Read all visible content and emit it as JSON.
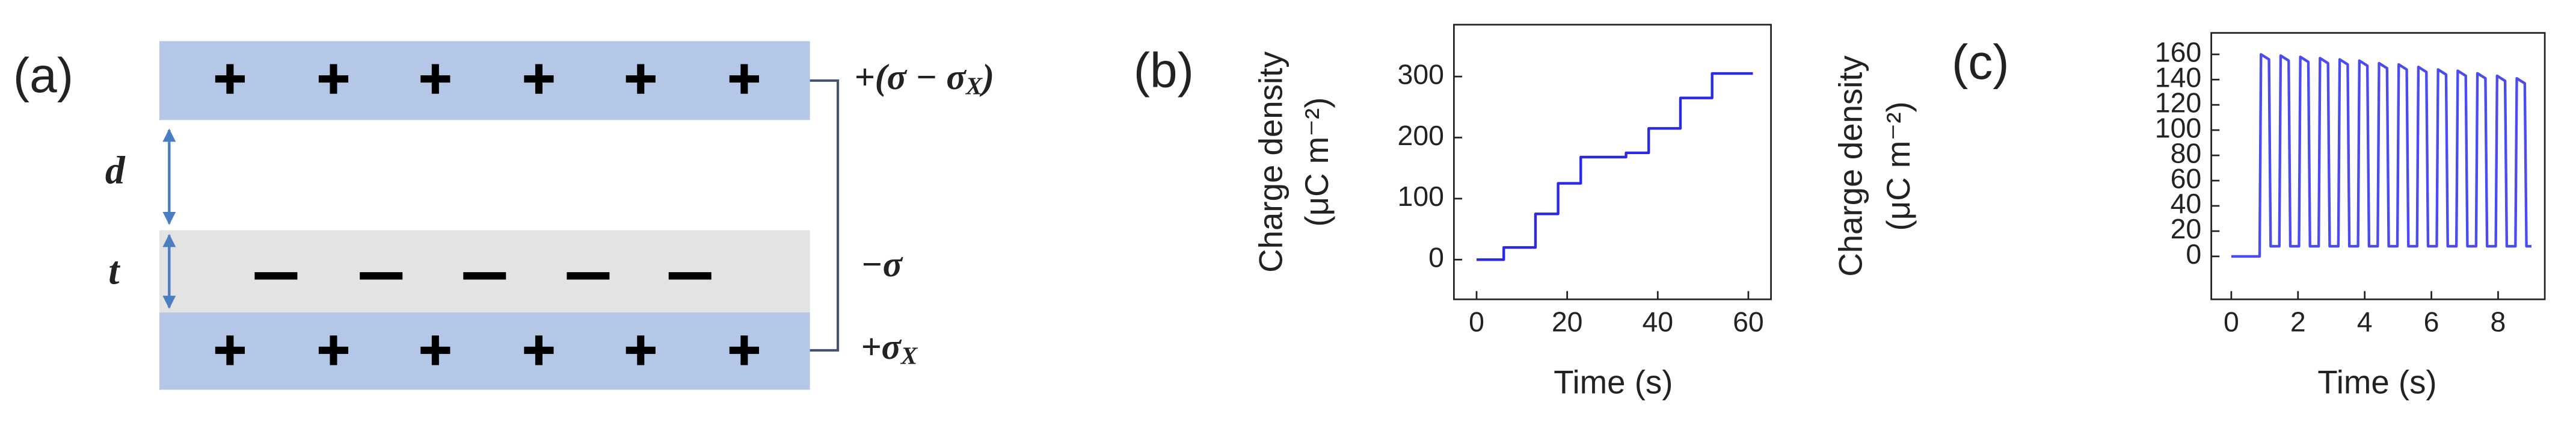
{
  "diagram": {
    "label": "(a)",
    "top_label": {
      "main": "+(σ − σ",
      "sub": "X",
      "tail": ")"
    },
    "middle_label": "−σ",
    "bottom_label": {
      "main": "+σ",
      "sub": "X"
    },
    "gap_label": "d",
    "thickness_label": "t"
  },
  "chart_data": [
    {
      "type": "line",
      "panel_label": "(b)",
      "xlabel": "Time (s)",
      "ylabel": [
        "Charge density",
        "(μC m⁻²)"
      ],
      "color": "#2a2ae6",
      "x": [
        0,
        6,
        6,
        13,
        13,
        18,
        18,
        23,
        23,
        33,
        33,
        38,
        38,
        45,
        45,
        52,
        52,
        61
      ],
      "values": [
        0,
        0,
        20,
        20,
        75,
        75,
        125,
        125,
        168,
        168,
        175,
        175,
        215,
        215,
        265,
        265,
        305,
        305
      ],
      "xlim": [
        -5,
        65
      ],
      "ylim": [
        -65,
        385
      ],
      "xticks": [
        0,
        20,
        40,
        60
      ],
      "yticks": [
        0,
        100,
        200,
        300
      ]
    },
    {
      "type": "line",
      "panel_label": "(c)",
      "xlabel": "Time (s)",
      "ylabel": [
        "Charge density",
        "(μC m⁻²)"
      ],
      "color": "#4b4bf0",
      "x": [
        0,
        0.85,
        0.89,
        1.13,
        1.18,
        1.44,
        1.48,
        1.72,
        1.77,
        2.03,
        2.07,
        2.31,
        2.36,
        2.62,
        2.66,
        2.9,
        2.95,
        3.21,
        3.25,
        3.49,
        3.54,
        3.8,
        3.84,
        4.08,
        4.13,
        4.39,
        4.43,
        4.67,
        4.72,
        4.98,
        5.02,
        5.26,
        5.31,
        5.57,
        5.61,
        5.85,
        5.9,
        6.16,
        6.2,
        6.44,
        6.49,
        6.75,
        6.79,
        7.03,
        7.08,
        7.34,
        7.38,
        7.62,
        7.67,
        7.93,
        7.97,
        8.21,
        8.26,
        8.52,
        8.56,
        8.8,
        8.85,
        9.0
      ],
      "values": [
        0,
        0,
        160,
        156,
        8,
        8,
        159,
        155,
        8,
        8,
        158,
        154,
        8,
        8,
        157,
        153,
        8,
        8,
        156,
        152,
        8,
        8,
        155,
        151,
        8,
        8,
        153,
        149,
        8,
        8,
        152,
        148,
        8,
        8,
        150,
        146,
        8,
        8,
        148,
        144,
        8,
        8,
        147,
        143,
        8,
        8,
        145,
        141,
        8,
        8,
        143,
        139,
        8,
        8,
        141,
        137,
        8,
        8
      ],
      "xlim": [
        -0.6,
        9.4
      ],
      "ylim": [
        -34,
        177
      ],
      "xticks": [
        0,
        2,
        4,
        6,
        8
      ],
      "yticks": [
        0,
        20,
        40,
        60,
        80,
        100,
        120,
        140,
        160
      ]
    }
  ]
}
